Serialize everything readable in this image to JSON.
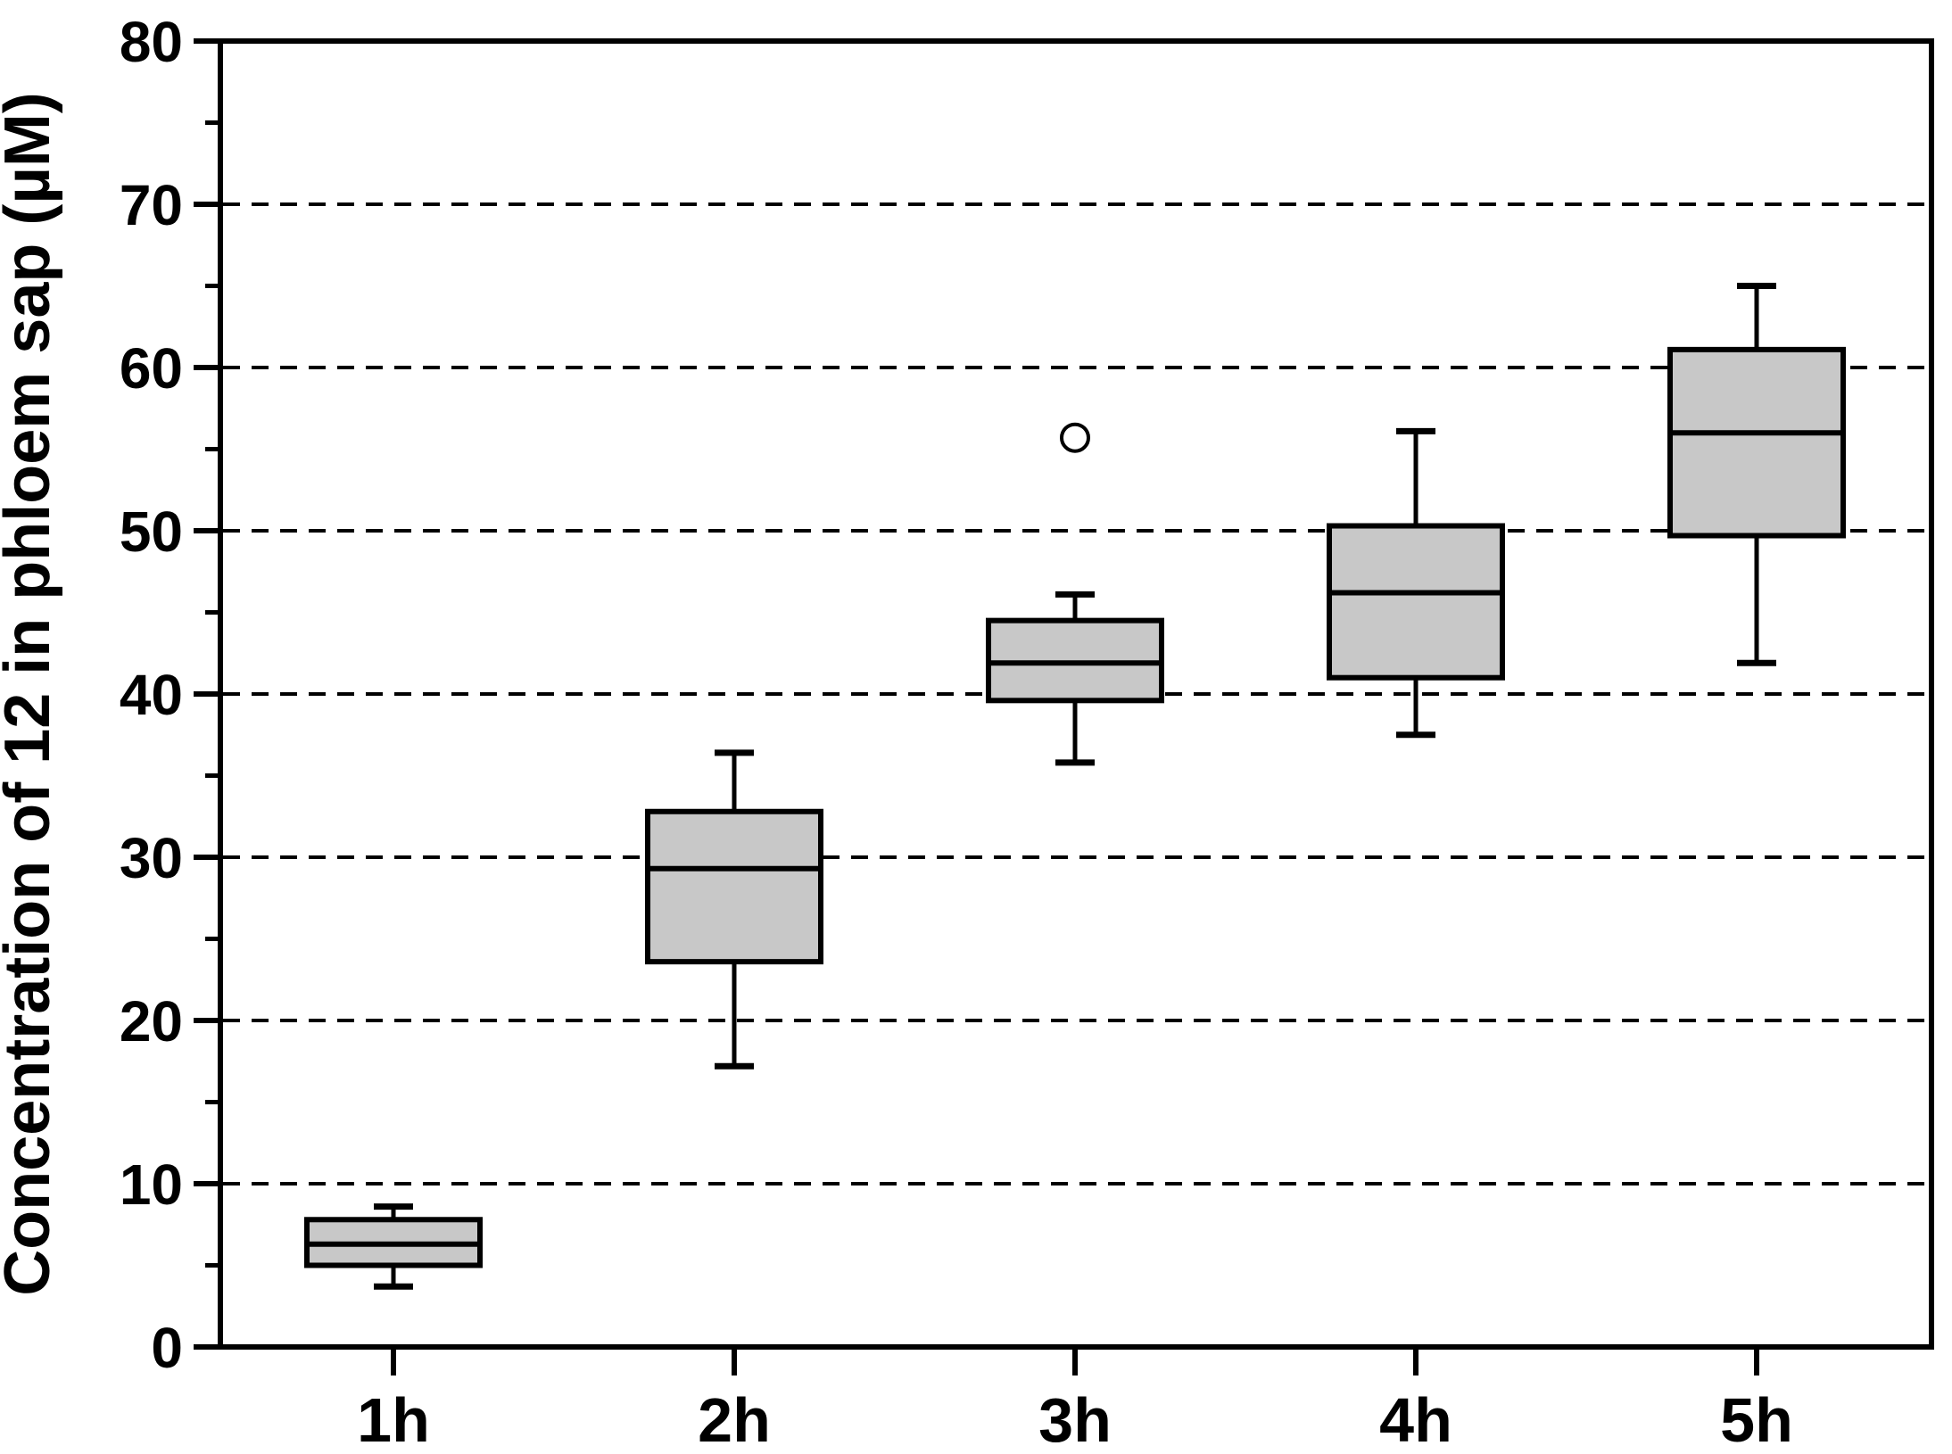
{
  "chart_data": {
    "type": "box",
    "title": "",
    "ylabel": "Concentration of 12 in phloem sap (µM)",
    "xlabel": "",
    "categories": [
      "1h",
      "2h",
      "3h",
      "4h",
      "5h"
    ],
    "y_axis": {
      "min": 0,
      "max": 80,
      "major_step": 10,
      "minor_step": 5,
      "tick_labels": [
        "0",
        "10",
        "20",
        "30",
        "40",
        "50",
        "60",
        "70",
        "80"
      ],
      "gridline_values": [
        10,
        20,
        30,
        40,
        50,
        60,
        70
      ],
      "grid_style": "dashed"
    },
    "series": [
      {
        "label": "1h",
        "whislo": 3.7,
        "q1": 5.0,
        "med": 6.3,
        "q3": 7.8,
        "whishi": 8.6,
        "outliers": []
      },
      {
        "label": "2h",
        "whislo": 17.2,
        "q1": 23.6,
        "med": 29.3,
        "q3": 32.8,
        "whishi": 36.4,
        "outliers": []
      },
      {
        "label": "3h",
        "whislo": 35.8,
        "q1": 39.6,
        "med": 41.9,
        "q3": 44.5,
        "whishi": 46.1,
        "outliers": [
          55.7
        ]
      },
      {
        "label": "4h",
        "whislo": 37.5,
        "q1": 41.0,
        "med": 46.2,
        "q3": 50.3,
        "whishi": 56.1,
        "outliers": []
      },
      {
        "label": "5h",
        "whislo": 41.9,
        "q1": 49.7,
        "med": 56.0,
        "q3": 61.1,
        "whishi": 65.0,
        "outliers": []
      }
    ],
    "legend": "none",
    "colors": {
      "box_fill": "#c8c8c8",
      "line": "#000000",
      "background": "#ffffff",
      "outlier_fill": "#ffffff"
    }
  }
}
